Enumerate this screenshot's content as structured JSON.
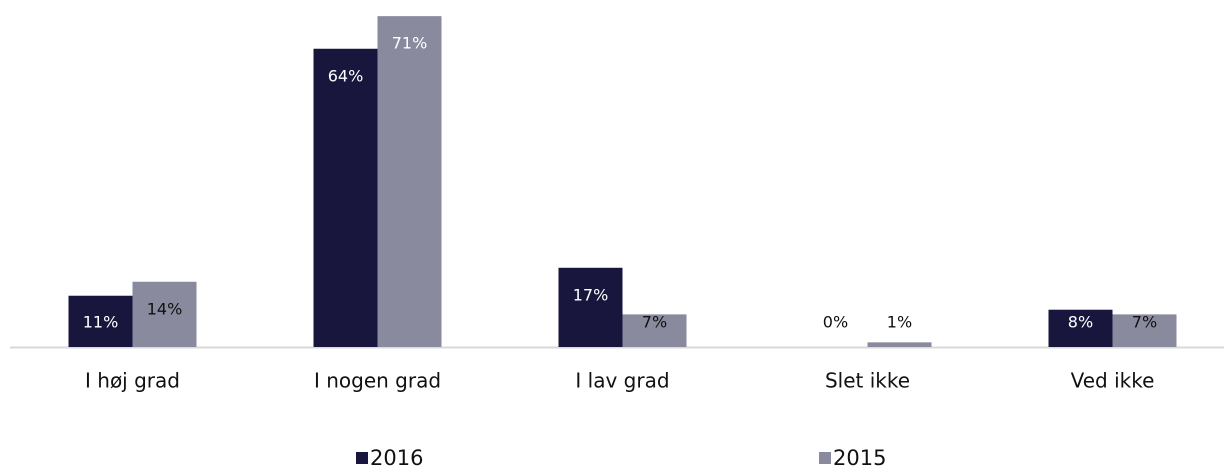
{
  "chart_data": {
    "type": "bar",
    "categories": [
      "I høj grad",
      "I nogen grad",
      "I lav grad",
      "Slet ikke",
      "Ved ikke"
    ],
    "series": [
      {
        "name": "2016",
        "color": "#18163d",
        "values": [
          11,
          64,
          17,
          0,
          8
        ],
        "value_labels": [
          "11%",
          "64%",
          "17%",
          "0%",
          "8%"
        ]
      },
      {
        "name": "2015",
        "color": "#8a8a9e",
        "values": [
          14,
          71,
          7,
          1,
          7
        ],
        "value_labels": [
          "14%",
          "71%",
          "7%",
          "1%",
          "7%"
        ]
      }
    ]
  }
}
